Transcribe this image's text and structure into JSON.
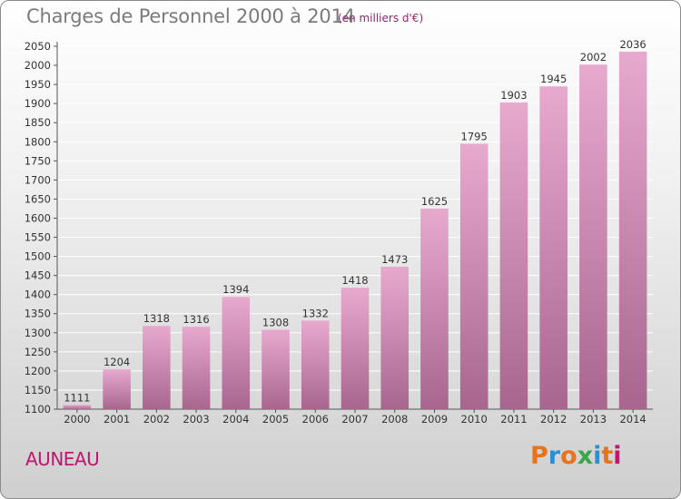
{
  "header": {
    "title": "Charges de Personnel 2000 à 2014",
    "subtitle": "(en milliers d'€)"
  },
  "footer": {
    "place": "AUNEAU",
    "logo": "Proxiti",
    "logo_colors": [
      "#e8731a",
      "#2a8fd6",
      "#e8731a",
      "#3aa64a",
      "#2a8fd6",
      "#e8731a",
      "#c0166e"
    ]
  },
  "colors": {
    "bar_top": "#e8a9cf",
    "bar_bottom": "#a8668f",
    "grid": "#ffffff",
    "accent": "#c0166e"
  },
  "chart_data": {
    "type": "bar",
    "categories": [
      "2000",
      "2001",
      "2002",
      "2003",
      "2004",
      "2005",
      "2006",
      "2007",
      "2008",
      "2009",
      "2010",
      "2011",
      "2012",
      "2013",
      "2014"
    ],
    "values": [
      1111,
      1204,
      1318,
      1316,
      1394,
      1308,
      1332,
      1418,
      1473,
      1625,
      1795,
      1903,
      1945,
      2002,
      2036
    ],
    "yticks": [
      1100,
      1150,
      1200,
      1250,
      1300,
      1350,
      1400,
      1450,
      1500,
      1550,
      1600,
      1650,
      1700,
      1750,
      1800,
      1850,
      1900,
      1950,
      2000,
      2050
    ],
    "ylim": [
      1100,
      2050
    ],
    "grid": true,
    "title": "Charges de Personnel 2000 à 2014",
    "xlabel": "",
    "ylabel": ""
  }
}
